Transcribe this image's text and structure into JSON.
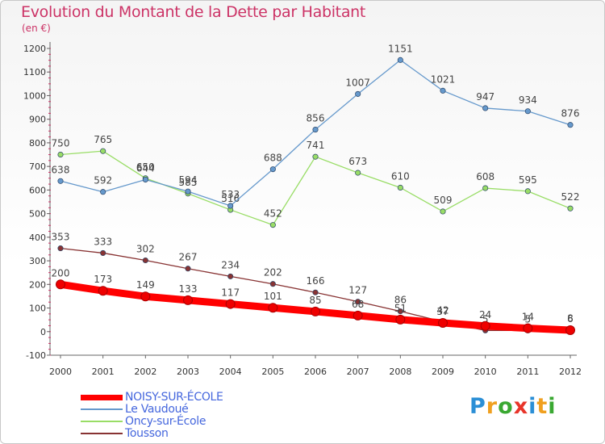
{
  "title": "Evolution du Montant de la Dette par Habitant",
  "subtitle": "(en €)",
  "logo": {
    "text": "Proxiti",
    "colors": [
      "#2b8fd6",
      "#f0a020",
      "#3aa832",
      "#e8352a",
      "#2b8fd6",
      "#f0a020",
      "#3aa832"
    ]
  },
  "chart_data": {
    "type": "line",
    "categories": [
      "2000",
      "2001",
      "2002",
      "2003",
      "2004",
      "2005",
      "2006",
      "2007",
      "2008",
      "2009",
      "2010",
      "2011",
      "2012"
    ],
    "ylim": [
      -100,
      1200
    ],
    "yticks": [
      -100,
      0,
      100,
      200,
      300,
      400,
      500,
      600,
      700,
      800,
      900,
      1000,
      1100,
      1200
    ],
    "grid": false,
    "legend_position": "bottom-left",
    "series": [
      {
        "name": "NOISY-SUR-ÉCOLE",
        "color": "#ff0000",
        "values": [
          200,
          173,
          149,
          133,
          117,
          101,
          85,
          68,
          51,
          37,
          24,
          14,
          6
        ],
        "labels": [
          "200",
          "173",
          "149",
          "133",
          "117",
          "101",
          "85",
          "68",
          "51",
          "37",
          "24",
          "14",
          "6"
        ]
      },
      {
        "name": "Le Vaudoué",
        "color": "#6699cc",
        "values": [
          638,
          592,
          644,
          594,
          533,
          688,
          856,
          1007,
          1151,
          1021,
          947,
          934,
          876
        ],
        "labels": [
          "638",
          "592",
          "644",
          "594",
          "533",
          "688",
          "856",
          "1007",
          "1151",
          "1021",
          "947",
          "934",
          "876"
        ]
      },
      {
        "name": "Oncy-sur-École",
        "color": "#99dd66",
        "values": [
          750,
          765,
          650,
          585,
          516,
          452,
          741,
          673,
          610,
          509,
          608,
          595,
          522
        ],
        "labels": [
          "750",
          "765",
          "650",
          "585",
          "516",
          "452",
          "741",
          "673",
          "610",
          "509",
          "608",
          "595",
          "522"
        ]
      },
      {
        "name": "Tousson",
        "color": "#883333",
        "values": [
          353,
          333,
          302,
          267,
          234,
          202,
          166,
          127,
          86,
          42,
          5,
          5,
          8
        ],
        "labels": [
          "353",
          "333",
          "302",
          "267",
          "234",
          "202",
          "166",
          "127",
          "86",
          "42",
          "5",
          "5",
          "8"
        ]
      }
    ]
  }
}
